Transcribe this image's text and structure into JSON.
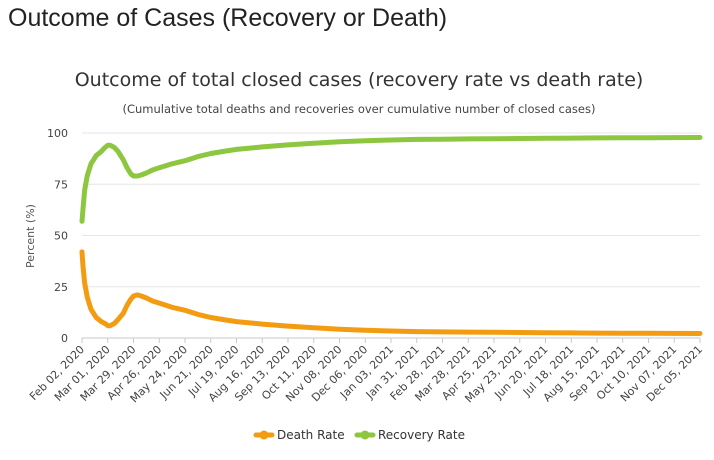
{
  "page": {
    "heading": "Outcome of Cases (Recovery or Death)"
  },
  "chart_data": {
    "type": "line",
    "title": "Outcome of total closed cases (recovery rate vs death rate)",
    "subtitle": "(Cumulative total deaths and recoveries over cumulative number of closed cases)",
    "ylabel": "Percent (%)",
    "xlabel": "",
    "ylim": [
      0,
      100
    ],
    "yticks": [
      0,
      25,
      50,
      75,
      100
    ],
    "grid": true,
    "legend_position": "bottom-center",
    "categories": [
      "Feb 02, 2020",
      "Mar 01, 2020",
      "Mar 29, 2020",
      "Apr 26, 2020",
      "May 24, 2020",
      "Jun 21, 2020",
      "Jul 19, 2020",
      "Aug 16, 2020",
      "Sep 13, 2020",
      "Oct 11, 2020",
      "Nov 08, 2020",
      "Dec 06, 2020",
      "Jan 03, 2021",
      "Jan 31, 2021",
      "Feb 28, 2021",
      "Mar 28, 2021",
      "Apr 25, 2021",
      "May 23, 2021",
      "Jun 20, 2021",
      "Jul 18, 2021",
      "Aug 15, 2021",
      "Sep 12, 2021",
      "Oct 10, 2021",
      "Nov 07, 2021",
      "Dec 05, 2021"
    ],
    "series": [
      {
        "name": "Death Rate",
        "color": "#f39c12",
        "values": [
          [
            0,
            42
          ],
          [
            0.04,
            35
          ],
          [
            0.1,
            27
          ],
          [
            0.2,
            20
          ],
          [
            0.35,
            14
          ],
          [
            0.55,
            10
          ],
          [
            0.75,
            8
          ],
          [
            0.9,
            7
          ],
          [
            1.0,
            6
          ],
          [
            1.1,
            6
          ],
          [
            1.25,
            7
          ],
          [
            1.4,
            9
          ],
          [
            1.6,
            12
          ],
          [
            1.75,
            16
          ],
          [
            1.9,
            19
          ],
          [
            2.0,
            20.5
          ],
          [
            2.15,
            21
          ],
          [
            2.3,
            20.5
          ],
          [
            2.5,
            19.5
          ],
          [
            2.75,
            18
          ],
          [
            3.0,
            17
          ],
          [
            3.5,
            15
          ],
          [
            4.0,
            13.5
          ],
          [
            4.5,
            11.5
          ],
          [
            5,
            10
          ],
          [
            5.5,
            9
          ],
          [
            6,
            8
          ],
          [
            7,
            6.8
          ],
          [
            8,
            5.8
          ],
          [
            9,
            5.0
          ],
          [
            10,
            4.3
          ],
          [
            11,
            3.8
          ],
          [
            12,
            3.4
          ],
          [
            13,
            3.1
          ],
          [
            14,
            3.0
          ],
          [
            15,
            2.9
          ],
          [
            16,
            2.8
          ],
          [
            17,
            2.7
          ],
          [
            18,
            2.6
          ],
          [
            19,
            2.5
          ],
          [
            20,
            2.4
          ],
          [
            21,
            2.35
          ],
          [
            22,
            2.3
          ],
          [
            23,
            2.25
          ],
          [
            24,
            2.2
          ]
        ]
      },
      {
        "name": "Recovery Rate",
        "color": "#8dc63f",
        "values": [
          [
            0,
            57
          ],
          [
            0.04,
            63
          ],
          [
            0.1,
            72
          ],
          [
            0.2,
            79
          ],
          [
            0.35,
            85
          ],
          [
            0.55,
            89
          ],
          [
            0.75,
            91
          ],
          [
            0.9,
            93
          ],
          [
            1.0,
            94
          ],
          [
            1.1,
            94
          ],
          [
            1.25,
            93
          ],
          [
            1.4,
            91
          ],
          [
            1.6,
            87
          ],
          [
            1.75,
            83
          ],
          [
            1.9,
            80
          ],
          [
            2.0,
            79
          ],
          [
            2.15,
            79
          ],
          [
            2.3,
            79.5
          ],
          [
            2.5,
            80.5
          ],
          [
            2.75,
            82
          ],
          [
            3.0,
            83
          ],
          [
            3.5,
            85
          ],
          [
            4.0,
            86.5
          ],
          [
            4.5,
            88.5
          ],
          [
            5,
            90
          ],
          [
            5.5,
            91
          ],
          [
            6,
            92
          ],
          [
            7,
            93.2
          ],
          [
            8,
            94.2
          ],
          [
            9,
            95.0
          ],
          [
            10,
            95.7
          ],
          [
            11,
            96.2
          ],
          [
            12,
            96.6
          ],
          [
            13,
            96.9
          ],
          [
            14,
            97.0
          ],
          [
            15,
            97.1
          ],
          [
            16,
            97.2
          ],
          [
            17,
            97.3
          ],
          [
            18,
            97.4
          ],
          [
            19,
            97.5
          ],
          [
            20,
            97.6
          ],
          [
            21,
            97.65
          ],
          [
            22,
            97.7
          ],
          [
            23,
            97.75
          ],
          [
            24,
            97.8
          ]
        ]
      }
    ]
  }
}
